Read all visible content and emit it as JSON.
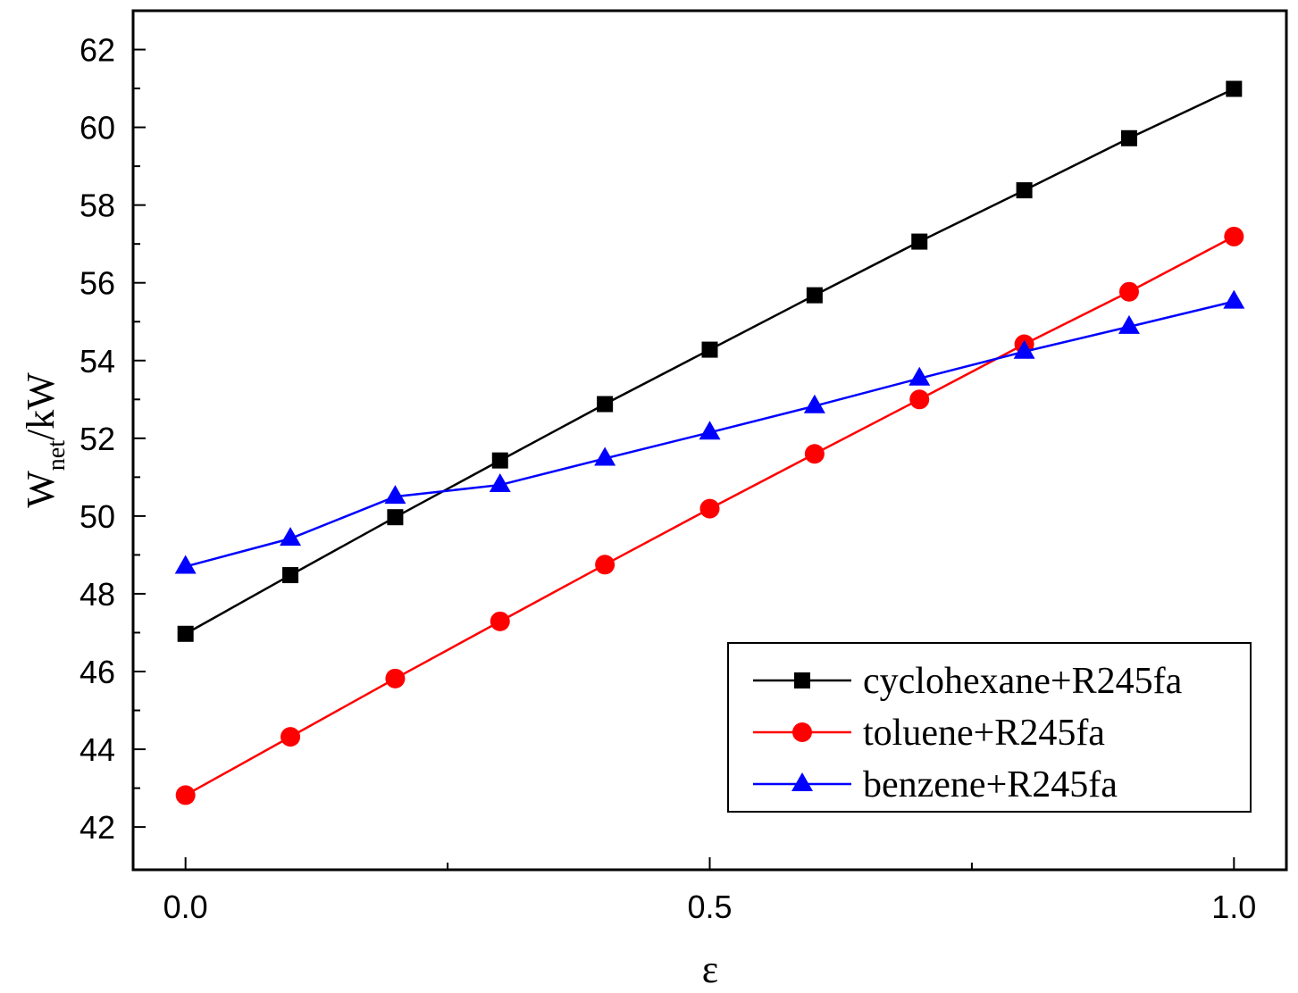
{
  "chart_data": {
    "type": "line",
    "title": "",
    "xlabel": "ε",
    "ylabel": "W_net/kW",
    "ylabel_main": "W",
    "ylabel_sub": "net",
    "ylabel_unit": "/kW",
    "xlim": [
      -0.05,
      1.05
    ],
    "ylim": [
      40.9,
      63.0
    ],
    "x_ticks": [
      0.0,
      0.5,
      1.0
    ],
    "x_tick_labels": [
      "0.0",
      "0.5",
      "1.0"
    ],
    "y_ticks": [
      42,
      44,
      46,
      48,
      50,
      52,
      54,
      56,
      58,
      60,
      62
    ],
    "y_tick_labels": [
      "42",
      "44",
      "46",
      "48",
      "50",
      "52",
      "54",
      "56",
      "58",
      "60",
      "62"
    ],
    "legend_position": "bottom-right",
    "grid": false,
    "x": [
      0.0,
      0.1,
      0.2,
      0.3,
      0.4,
      0.5,
      0.6,
      0.7,
      0.8,
      0.9,
      1.0
    ],
    "series": [
      {
        "name": "cyclohexane+R245fa",
        "color": "#000000",
        "marker": "square",
        "values": [
          46.97,
          48.48,
          49.97,
          51.43,
          52.88,
          54.28,
          55.68,
          57.06,
          58.38,
          59.72,
          60.99
        ]
      },
      {
        "name": "toluene+R245fa",
        "color": "#ff0000",
        "marker": "circle",
        "values": [
          42.82,
          44.32,
          45.82,
          47.29,
          48.75,
          50.19,
          51.6,
          53.0,
          54.42,
          55.77,
          57.19
        ]
      },
      {
        "name": "benzene+R245fa",
        "color": "#0000ff",
        "marker": "triangle",
        "values": [
          48.7,
          49.42,
          50.5,
          50.8,
          51.48,
          52.15,
          52.83,
          53.54,
          54.23,
          54.87,
          55.52
        ]
      }
    ]
  }
}
